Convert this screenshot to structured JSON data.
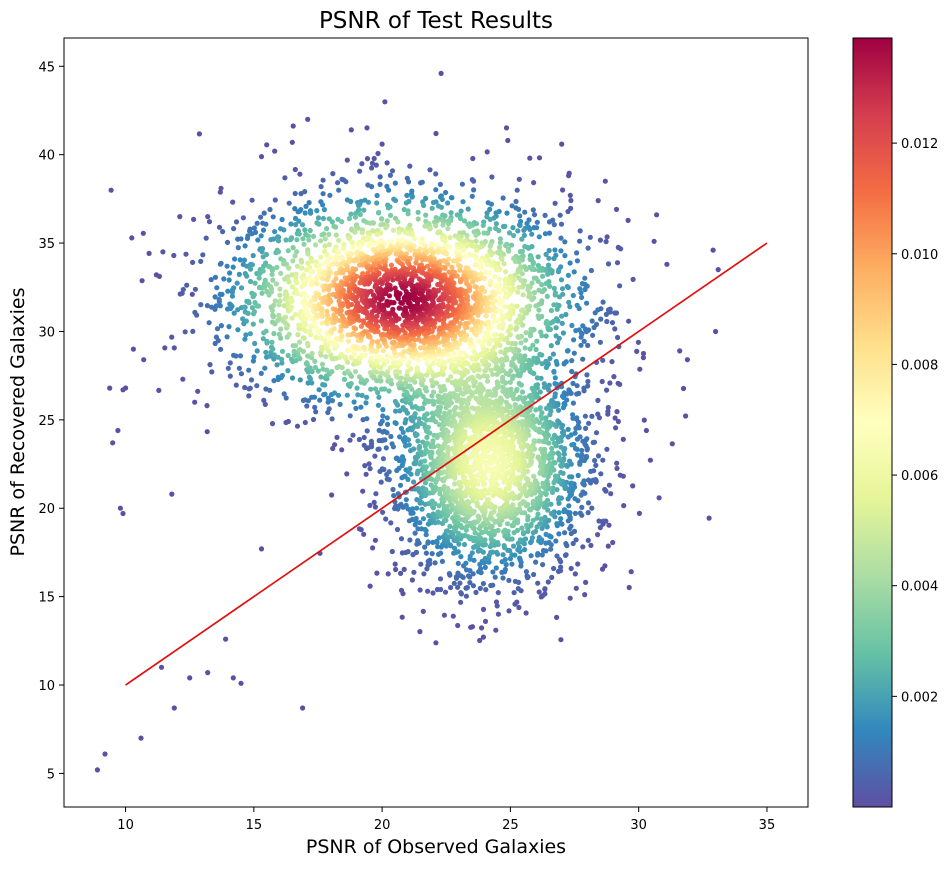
{
  "chart_data": {
    "type": "scatter",
    "title": "PSNR of Test Results",
    "xlabel": "PSNR of Observed Galaxies",
    "ylabel": "PSNR of Recovered Galaxies",
    "xlim": [
      7.6,
      36.6
    ],
    "ylim": [
      3.1,
      46.6
    ],
    "xticks": [
      10,
      15,
      20,
      25,
      30,
      35
    ],
    "yticks": [
      5,
      10,
      15,
      20,
      25,
      30,
      35,
      40,
      45
    ],
    "grid": false,
    "legend": "none",
    "reference_line": {
      "x": [
        10,
        35
      ],
      "y": [
        10,
        35
      ],
      "color": "#e01010"
    },
    "colormap": "Spectral_r",
    "colorbar": {
      "range": [
        0.0,
        0.0139
      ],
      "ticks": [
        0.002,
        0.004,
        0.006,
        0.008,
        0.01,
        0.012
      ],
      "tick_labels": [
        "0.002",
        "0.004",
        "0.006",
        "0.008",
        "0.010",
        "0.012"
      ]
    },
    "density_clusters": [
      {
        "name": "main",
        "x": 20.8,
        "y": 31.8,
        "sx": 3.2,
        "sy": 2.8,
        "weight": 0.55,
        "peak": 0.0139
      },
      {
        "name": "lower-right",
        "x": 24.2,
        "y": 22.5,
        "sx": 1.9,
        "sy": 3.2,
        "weight": 0.45,
        "peak": 0.0065
      }
    ],
    "outlier_points": [
      [
        8.9,
        5.2
      ],
      [
        9.2,
        6.1
      ],
      [
        10.6,
        7.0
      ],
      [
        11.9,
        8.7
      ],
      [
        16.9,
        8.7
      ],
      [
        9.5,
        23.7
      ],
      [
        9.8,
        20.0
      ],
      [
        9.9,
        19.7
      ],
      [
        9.9,
        26.7
      ],
      [
        10.0,
        26.8
      ],
      [
        9.7,
        24.4
      ],
      [
        22.3,
        44.6
      ],
      [
        17.1,
        42.0
      ],
      [
        18.8,
        41.4
      ],
      [
        16.5,
        40.7
      ],
      [
        20.0,
        40.6
      ],
      [
        22.1,
        41.2
      ],
      [
        24.9,
        40.8
      ],
      [
        27.0,
        40.6
      ],
      [
        28.7,
        38.5
      ],
      [
        32.9,
        34.6
      ],
      [
        33.0,
        30.0
      ],
      [
        33.1,
        33.5
      ],
      [
        31.9,
        28.4
      ],
      [
        31.6,
        28.9
      ],
      [
        30.7,
        36.6
      ],
      [
        30.6,
        35.1
      ],
      [
        31.1,
        33.8
      ],
      [
        30.3,
        24.4
      ],
      [
        29.4,
        23.9
      ],
      [
        14.5,
        10.1
      ],
      [
        13.2,
        10.7
      ],
      [
        12.5,
        10.4
      ],
      [
        11.4,
        11.0
      ],
      [
        14.2,
        10.4
      ],
      [
        13.9,
        12.6
      ],
      [
        12.6,
        32.1
      ],
      [
        11.2,
        33.2
      ],
      [
        11.8,
        20.8
      ],
      [
        15.3,
        17.7
      ]
    ],
    "sample_size": 5600
  }
}
